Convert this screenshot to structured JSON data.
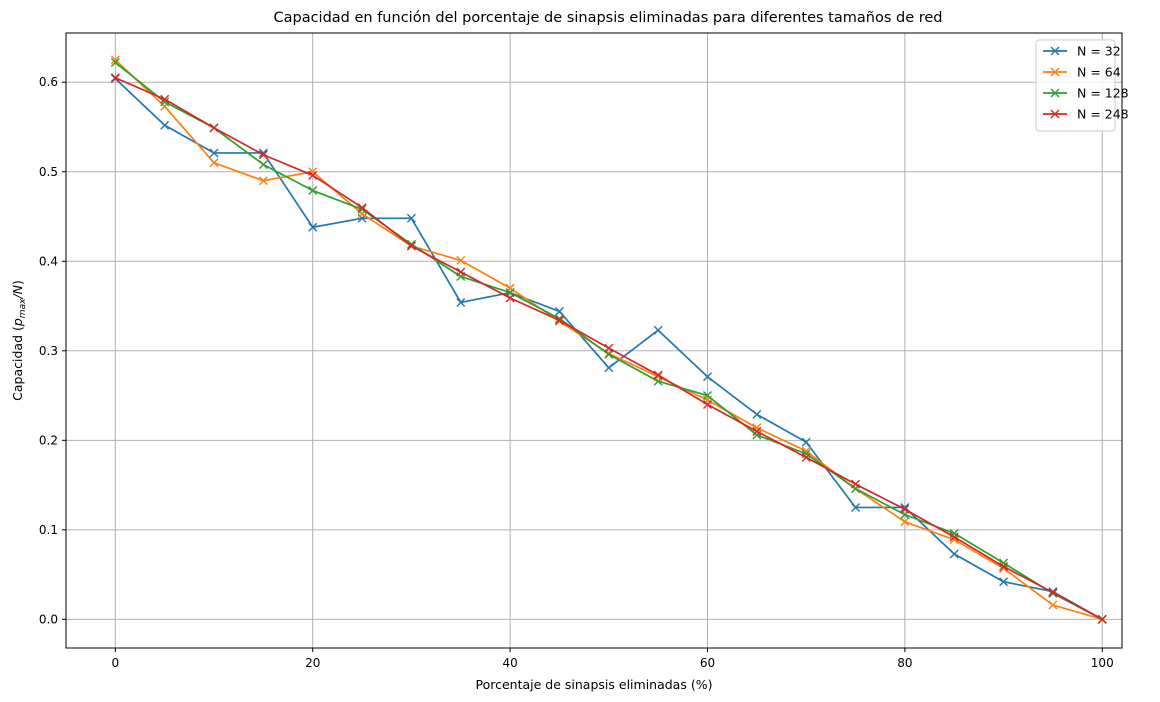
{
  "chart_data": {
    "type": "line",
    "title": "Capacidad en función del porcentaje de sinapsis eliminadas para diferentes tamaños de red",
    "xlabel": "Porcentaje de sinapsis eliminadas (%)",
    "ylabel_prefix": "Capacidad (",
    "ylabel_math_p": "p",
    "ylabel_math_sub": "max",
    "ylabel_math_rest": "/N",
    "ylabel_suffix": ")",
    "xlim": [
      -5,
      102
    ],
    "ylim": [
      -0.032,
      0.655
    ],
    "xticks": [
      0,
      20,
      40,
      60,
      80,
      100
    ],
    "xtick_labels": [
      "0",
      "20",
      "40",
      "60",
      "80",
      "100"
    ],
    "yticks": [
      0.0,
      0.1,
      0.2,
      0.3,
      0.4,
      0.5,
      0.6
    ],
    "ytick_labels": [
      "0.0",
      "0.1",
      "0.2",
      "0.3",
      "0.4",
      "0.5",
      "0.6"
    ],
    "grid": true,
    "legend_position": "top-right",
    "marker": "x",
    "x": [
      0,
      5,
      10,
      15,
      20,
      25,
      30,
      35,
      40,
      45,
      50,
      55,
      60,
      65,
      70,
      75,
      80,
      85,
      90,
      95,
      100
    ],
    "series": [
      {
        "name": "N = 32",
        "color": "#1f77b4",
        "values": [
          0.604,
          0.552,
          0.521,
          0.521,
          0.438,
          0.448,
          0.448,
          0.354,
          0.365,
          0.344,
          0.281,
          0.323,
          0.271,
          0.229,
          0.198,
          0.125,
          0.125,
          0.073,
          0.042,
          0.031,
          0.0
        ]
      },
      {
        "name": "N = 64",
        "color": "#ff7f0e",
        "values": [
          0.625,
          0.573,
          0.51,
          0.49,
          0.5,
          0.453,
          0.417,
          0.401,
          0.37,
          0.333,
          0.297,
          0.271,
          0.245,
          0.214,
          0.188,
          0.146,
          0.109,
          0.089,
          0.057,
          0.016,
          0.0
        ]
      },
      {
        "name": "N = 128",
        "color": "#2ca02c",
        "values": [
          0.622,
          0.578,
          0.549,
          0.508,
          0.479,
          0.458,
          0.419,
          0.383,
          0.365,
          0.336,
          0.296,
          0.266,
          0.25,
          0.206,
          0.185,
          0.146,
          0.117,
          0.096,
          0.063,
          0.029,
          0.0
        ]
      },
      {
        "name": "N = 248",
        "color": "#d62728",
        "values": [
          0.605,
          0.581,
          0.549,
          0.519,
          0.496,
          0.46,
          0.417,
          0.388,
          0.359,
          0.334,
          0.303,
          0.273,
          0.24,
          0.21,
          0.181,
          0.151,
          0.123,
          0.092,
          0.059,
          0.03,
          0.0
        ]
      }
    ]
  }
}
